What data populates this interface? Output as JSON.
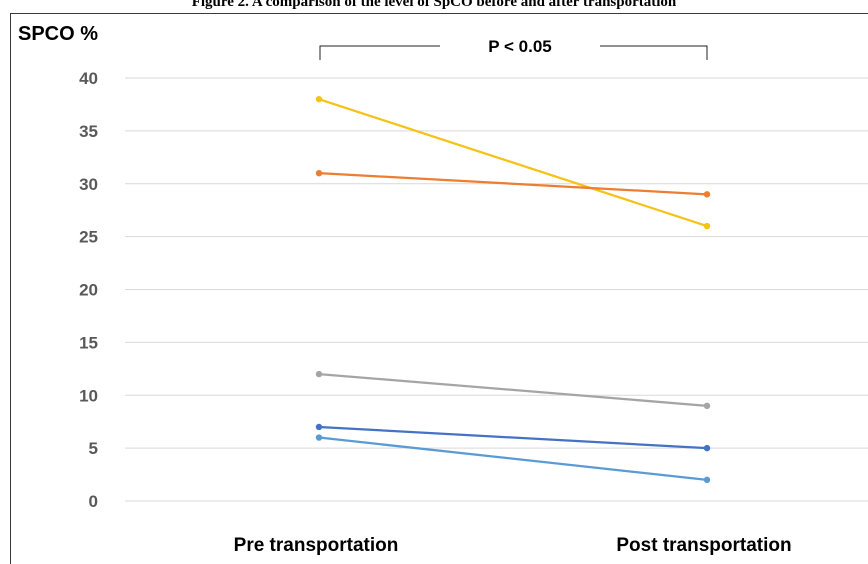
{
  "figure_caption": "Figure 2. A comparison of the level of SpCO before and after transportation",
  "chart_data": {
    "type": "line",
    "title": "",
    "ylabel": "SPCO %",
    "xlabel": "",
    "categories": [
      "Pre transportation",
      "Post transportation"
    ],
    "ylim": [
      0,
      40
    ],
    "yticks": [
      0,
      5,
      10,
      15,
      20,
      25,
      30,
      35,
      40
    ],
    "grid": true,
    "legend": "none",
    "annotation": "P < 0.05",
    "series": [
      {
        "values": [
          38,
          26
        ],
        "color": "#f5c218"
      },
      {
        "values": [
          31,
          29
        ],
        "color": "#ed7d31"
      },
      {
        "values": [
          12,
          9
        ],
        "color": "#a5a5a5"
      },
      {
        "values": [
          7,
          5
        ],
        "color": "#4472c4"
      },
      {
        "values": [
          6,
          2
        ],
        "color": "#5b9bd5"
      }
    ]
  }
}
